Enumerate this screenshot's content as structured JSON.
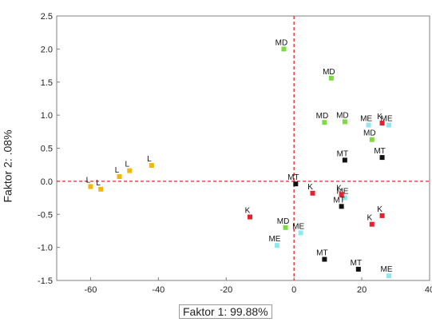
{
  "chart_data": {
    "type": "scatter",
    "xlabel": "Faktor 1: 99.88%",
    "ylabel": "Faktor 2: .08%",
    "xlim": [
      -70,
      40
    ],
    "ylim": [
      -1.5,
      2.5
    ],
    "x_ticks": [
      "-60",
      "-40",
      "-20",
      "0",
      "20",
      "40"
    ],
    "x_tick_values": [
      -60,
      -40,
      -20,
      0,
      20,
      40
    ],
    "y_ticks": [
      "2.5",
      "2.0",
      "1.5",
      "1.0",
      "0.5",
      "0.0",
      "-0.5",
      "-1.0",
      "-1.5"
    ],
    "y_tick_values": [
      2.5,
      2.0,
      1.5,
      1.0,
      0.5,
      0.0,
      -0.5,
      -1.0,
      -1.5
    ],
    "reference_lines": {
      "x": 0,
      "y": 0,
      "color": "#e8262a",
      "style": "dashed"
    },
    "groups": {
      "L": {
        "color": "#f5b800"
      },
      "MD": {
        "color": "#7ddc3c"
      },
      "ME": {
        "color": "#8fe8f0"
      },
      "MT": {
        "color": "#111111"
      },
      "K": {
        "color": "#e5212b"
      }
    },
    "points": [
      {
        "label": "L",
        "group": "L",
        "x": -60.0,
        "y": -0.08
      },
      {
        "label": "L",
        "group": "L",
        "x": -57.0,
        "y": -0.12
      },
      {
        "label": "L",
        "group": "L",
        "x": -51.5,
        "y": 0.07
      },
      {
        "label": "L",
        "group": "L",
        "x": -48.5,
        "y": 0.16
      },
      {
        "label": "L",
        "group": "L",
        "x": -42.0,
        "y": 0.24
      },
      {
        "label": "MD",
        "group": "MD",
        "x": -3.0,
        "y": 2.0
      },
      {
        "label": "MD",
        "group": "MD",
        "x": 11.0,
        "y": 1.56
      },
      {
        "label": "MD",
        "group": "MD",
        "x": 9.0,
        "y": 0.89
      },
      {
        "label": "MD",
        "group": "MD",
        "x": 15.0,
        "y": 0.9
      },
      {
        "label": "MD",
        "group": "MD",
        "x": 23.0,
        "y": 0.63
      },
      {
        "label": "MD",
        "group": "MD",
        "x": -2.5,
        "y": -0.7
      },
      {
        "label": "ME",
        "group": "ME",
        "x": 22.0,
        "y": 0.85
      },
      {
        "label": "ME",
        "group": "ME",
        "x": 28.0,
        "y": 0.85
      },
      {
        "label": "ME",
        "group": "ME",
        "x": 15.0,
        "y": -0.25
      },
      {
        "label": "ME",
        "group": "ME",
        "x": 2.0,
        "y": -0.78
      },
      {
        "label": "ME",
        "group": "ME",
        "x": -5.0,
        "y": -0.97
      },
      {
        "label": "ME",
        "group": "ME",
        "x": 28.0,
        "y": -1.43
      },
      {
        "label": "K",
        "group": "K",
        "x": 26.0,
        "y": 0.88
      },
      {
        "label": "K",
        "group": "K",
        "x": 5.5,
        "y": -0.18
      },
      {
        "label": "K",
        "group": "K",
        "x": 14.0,
        "y": -0.2
      },
      {
        "label": "K",
        "group": "K",
        "x": -13.0,
        "y": -0.54
      },
      {
        "label": "K",
        "group": "K",
        "x": 26.0,
        "y": -0.52
      },
      {
        "label": "K",
        "group": "K",
        "x": 23.0,
        "y": -0.65
      },
      {
        "label": "MT",
        "group": "MT",
        "x": 15.0,
        "y": 0.32
      },
      {
        "label": "MT",
        "group": "MT",
        "x": 26.0,
        "y": 0.36
      },
      {
        "label": "MT",
        "group": "MT",
        "x": 0.5,
        "y": -0.04
      },
      {
        "label": "MT",
        "group": "MT",
        "x": 14.0,
        "y": -0.38
      },
      {
        "label": "MT",
        "group": "MT",
        "x": 9.0,
        "y": -1.18
      },
      {
        "label": "MT",
        "group": "MT",
        "x": 19.0,
        "y": -1.33
      }
    ]
  }
}
